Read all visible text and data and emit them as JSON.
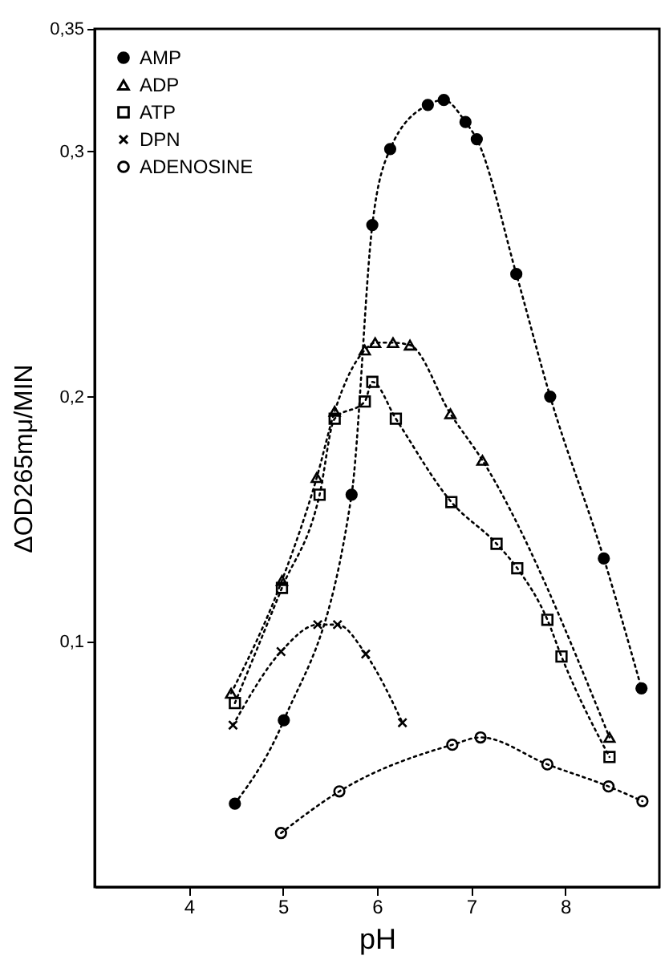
{
  "chart_data": {
    "type": "line",
    "xlabel": "pH",
    "ylabel": "ΔOD265mμ/MIN",
    "xlim": [
      3,
      9
    ],
    "ylim": [
      0,
      0.35
    ],
    "xticks": [
      4,
      5,
      6,
      7,
      8
    ],
    "yticks": [
      {
        "value": 0.1,
        "label": "0,1"
      },
      {
        "value": 0.2,
        "label": "0,2"
      },
      {
        "value": 0.3,
        "label": "0,3"
      },
      {
        "value": 0.35,
        "label": "0,35"
      }
    ],
    "grid": false,
    "legend": "top left",
    "line_style": "dotted",
    "series": [
      {
        "name": "AMP",
        "color": "#000000",
        "marker": "circle",
        "x": [
          4.49,
          5.01,
          5.73,
          5.95,
          6.14,
          6.54,
          6.71,
          6.94,
          7.06,
          7.48,
          7.84,
          8.41,
          8.81
        ],
        "values": [
          0.034,
          0.068,
          0.16,
          0.27,
          0.301,
          0.319,
          0.321,
          0.312,
          0.305,
          0.25,
          0.2,
          0.134,
          0.081
        ]
      },
      {
        "name": "ADP",
        "color": "#000000",
        "marker": "triangle",
        "x": [
          4.45,
          4.99,
          5.36,
          5.55,
          5.87,
          5.98,
          6.17,
          6.35,
          6.78,
          7.12,
          8.47
        ],
        "values": [
          0.079,
          0.125,
          0.167,
          0.194,
          0.219,
          0.222,
          0.222,
          0.221,
          0.193,
          0.174,
          0.061
        ]
      },
      {
        "name": "ATP",
        "color": "#000000",
        "marker": "square",
        "x": [
          4.49,
          4.99,
          5.39,
          5.55,
          5.87,
          5.95,
          6.2,
          6.79,
          7.27,
          7.49,
          7.81,
          7.96,
          8.47
        ],
        "values": [
          0.075,
          0.122,
          0.16,
          0.191,
          0.198,
          0.206,
          0.191,
          0.157,
          0.14,
          0.13,
          0.109,
          0.094,
          0.053
        ]
      },
      {
        "name": "DPN",
        "color": "#000000",
        "marker": "cross",
        "x": [
          4.47,
          4.98,
          5.37,
          5.58,
          5.88,
          6.27
        ],
        "values": [
          0.066,
          0.096,
          0.107,
          0.107,
          0.095,
          0.067
        ]
      },
      {
        "name": "ADENOSINE",
        "color": "#000000",
        "marker": "circle",
        "x": [
          4.98,
          5.6,
          6.8,
          7.1,
          7.81,
          8.46,
          8.82
        ],
        "values": [
          0.022,
          0.039,
          0.058,
          0.061,
          0.05,
          0.041,
          0.035
        ]
      }
    ]
  }
}
